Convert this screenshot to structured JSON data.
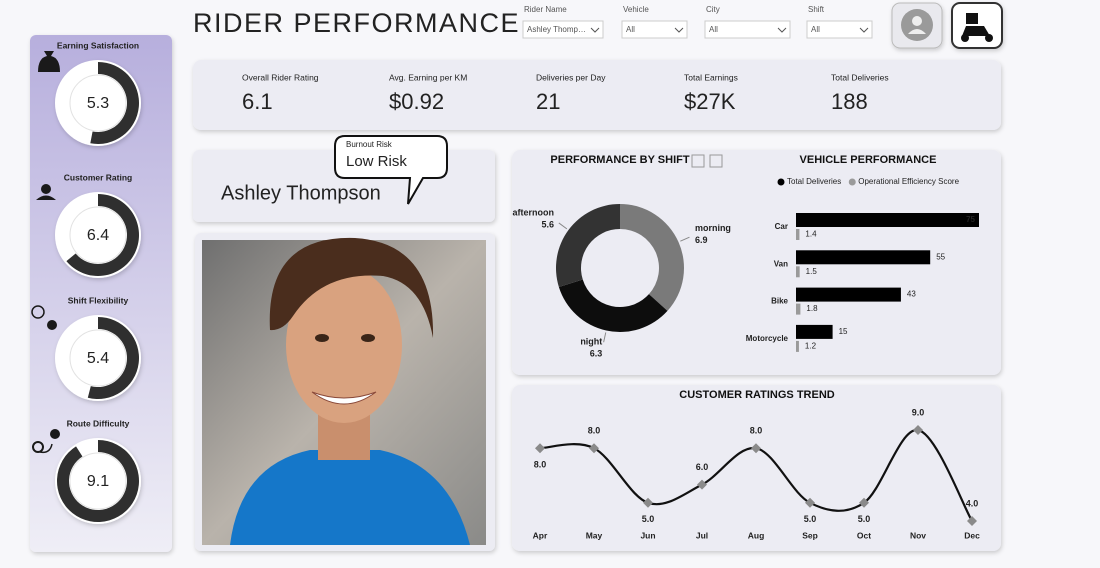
{
  "header": {
    "title": "RIDER PERFORMANCE"
  },
  "filters": [
    {
      "label": "Rider Name",
      "value": "Ashley Thomp…"
    },
    {
      "label": "Vehicle",
      "value": "All"
    },
    {
      "label": "City",
      "value": "All"
    },
    {
      "label": "Shift",
      "value": "All"
    }
  ],
  "kpis": [
    {
      "label": "Overall Rider Rating",
      "value": "6.1"
    },
    {
      "label": "Avg. Earning per KM",
      "value": "$0.92"
    },
    {
      "label": "Deliveries per Day",
      "value": "21"
    },
    {
      "label": "Total Earnings",
      "value": "$27K"
    },
    {
      "label": "Total Deliveries",
      "value": "188"
    }
  ],
  "rider": {
    "name": "Ashley Thompson",
    "burnout_label": "Burnout Risk",
    "burnout_value": "Low Risk"
  },
  "chart_data": [
    {
      "type": "gauge",
      "title": "Earning Satisfaction",
      "value": 5.3,
      "ylim": [
        0,
        10
      ],
      "color": "#2f2f2f"
    },
    {
      "type": "gauge",
      "title": "Customer Rating",
      "value": 6.4,
      "ylim": [
        0,
        10
      ],
      "color": "#2f2f2f"
    },
    {
      "type": "gauge",
      "title": "Shift Flexibility",
      "value": 5.4,
      "ylim": [
        0,
        10
      ],
      "color": "#2f2f2f"
    },
    {
      "type": "gauge",
      "title": "Route Difficulty",
      "value": 9.1,
      "ylim": [
        0,
        10
      ],
      "color": "#2f2f2f"
    },
    {
      "type": "donut",
      "title": "PERFORMANCE BY SHIFT",
      "categories": [
        "morning",
        "night",
        "afternoon"
      ],
      "values": [
        6.9,
        6.3,
        5.6
      ],
      "colors": [
        "#7a7a7a",
        "#0d0d0d",
        "#333333"
      ]
    },
    {
      "type": "hbar",
      "title": "VEHICLE PERFORMANCE",
      "categories": [
        "Car",
        "Van",
        "Bike",
        "Motorcycle"
      ],
      "series": [
        {
          "name": "Total Deliveries",
          "color": "#000000",
          "values": [
            75,
            55,
            43,
            15
          ]
        },
        {
          "name": "Operational Efficiency Score",
          "color": "#9a9a9a",
          "values": [
            1.4,
            1.5,
            1.8,
            1.2
          ]
        }
      ],
      "xlim": [
        0,
        75
      ],
      "legend": "top"
    },
    {
      "type": "line",
      "title": "CUSTOMER RATINGS TREND",
      "categories": [
        "Apr",
        "May",
        "Jun",
        "Jul",
        "Aug",
        "Sep",
        "Oct",
        "Nov",
        "Dec"
      ],
      "values": [
        8,
        8,
        5,
        6,
        8,
        5,
        5,
        9,
        4
      ],
      "value_labels": [
        "8.0",
        "8.0",
        "5.0",
        "6.0",
        "8.0",
        "5.0",
        "5.0",
        "9.0",
        "4.0"
      ],
      "ylim": [
        4,
        9
      ],
      "color": "#111111",
      "marker_color": "#8a8a8a"
    }
  ]
}
